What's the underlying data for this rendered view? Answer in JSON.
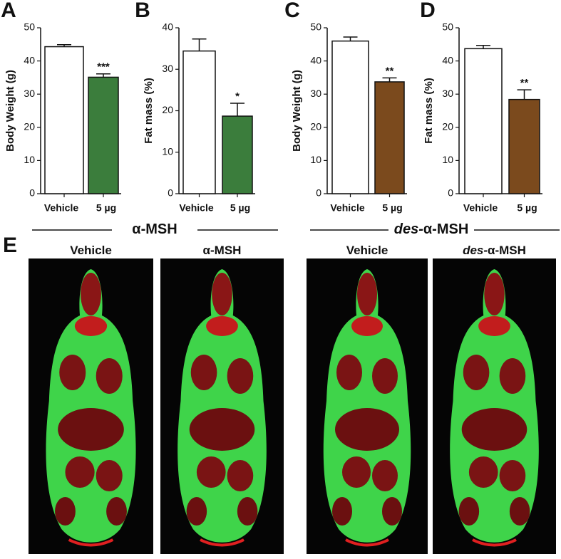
{
  "chart_data": [
    {
      "type": "bar",
      "panel": "A",
      "y_label": "Body Weight (g)",
      "categories": [
        "Vehicle",
        "5 µg"
      ],
      "values": [
        44.3,
        35.1
      ],
      "errors": [
        0.6,
        1.0
      ],
      "annotations": [
        null,
        "***"
      ],
      "colors": [
        "#ffffff",
        "#3b7d3c"
      ],
      "ylim": [
        0,
        50
      ],
      "yticks": [
        0,
        10,
        20,
        30,
        40,
        50
      ]
    },
    {
      "type": "bar",
      "panel": "B",
      "y_label": "Fat mass (%)",
      "categories": [
        "Vehicle",
        "5 µg"
      ],
      "values": [
        34.4,
        18.7
      ],
      "errors": [
        2.9,
        3.1
      ],
      "annotations": [
        null,
        "*"
      ],
      "colors": [
        "#ffffff",
        "#3b7d3c"
      ],
      "ylim": [
        0,
        40
      ],
      "yticks": [
        0,
        10,
        20,
        30,
        40
      ]
    },
    {
      "type": "bar",
      "panel": "C",
      "y_label": "Body Weight (g)",
      "categories": [
        "Vehicle",
        "5 µg"
      ],
      "values": [
        46.0,
        33.7
      ],
      "errors": [
        1.2,
        1.2
      ],
      "annotations": [
        null,
        "**"
      ],
      "colors": [
        "#ffffff",
        "#7b4a1d"
      ],
      "ylim": [
        0,
        50
      ],
      "yticks": [
        0,
        10,
        20,
        30,
        40,
        50
      ]
    },
    {
      "type": "bar",
      "panel": "D",
      "y_label": "Fat mass (%)",
      "categories": [
        "Vehicle",
        "5 µg"
      ],
      "values": [
        43.7,
        28.4
      ],
      "errors": [
        1.0,
        2.9
      ],
      "annotations": [
        null,
        "**"
      ],
      "colors": [
        "#ffffff",
        "#7b4a1d"
      ],
      "ylim": [
        0,
        50
      ],
      "yticks": [
        0,
        10,
        20,
        30,
        40,
        50
      ]
    }
  ],
  "groups": [
    {
      "name": "α-MSH"
    },
    {
      "prefix": "des-",
      "name": "α-MSH"
    }
  ],
  "panel_e": {
    "panel": "E",
    "images": [
      {
        "title": "Vehicle"
      },
      {
        "title": "α-MSH"
      },
      {
        "title": "Vehicle"
      },
      {
        "prefix": "des-",
        "title": "α-MSH"
      }
    ]
  }
}
